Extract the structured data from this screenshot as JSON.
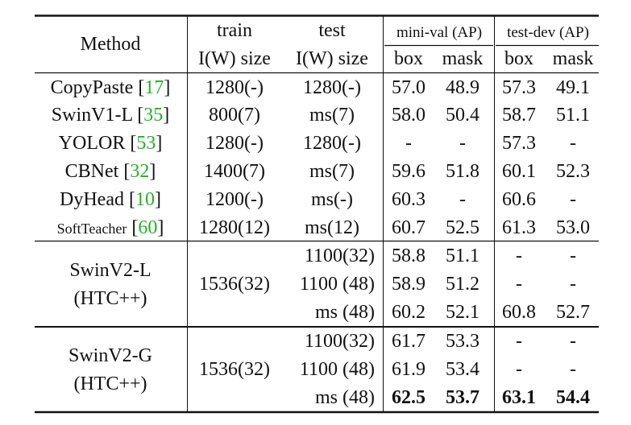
{
  "header": {
    "method": "Method",
    "train_line1": "train",
    "train_line2": "I(W) size",
    "test_line1": "test",
    "test_line2": "I(W) size",
    "minival_group": "mini-val (AP)",
    "testdev_group": "test-dev (AP)",
    "box": "box",
    "mask": "mask"
  },
  "rows": [
    {
      "method": "CopyPaste",
      "cite": "17",
      "train": "1280(-)",
      "test": "1280(-)",
      "mv_box": "57.0",
      "mv_mask": "48.9",
      "td_box": "57.3",
      "td_mask": "49.1"
    },
    {
      "method": "SwinV1-L",
      "cite": "35",
      "train": "800(7)",
      "test": "ms(7)",
      "mv_box": "58.0",
      "mv_mask": "50.4",
      "td_box": "58.7",
      "td_mask": "51.1"
    },
    {
      "method": "YOLOR",
      "cite": "53",
      "train": "1280(-)",
      "test": "1280(-)",
      "mv_box": "-",
      "mv_mask": "-",
      "td_box": "57.3",
      "td_mask": "-"
    },
    {
      "method": "CBNet",
      "cite": "32",
      "train": "1400(7)",
      "test": "ms(7)",
      "mv_box": "59.6",
      "mv_mask": "51.8",
      "td_box": "60.1",
      "td_mask": "52.3"
    },
    {
      "method": "DyHead",
      "cite": "10",
      "train": "1200(-)",
      "test": "ms(-)",
      "mv_box": "60.3",
      "mv_mask": "-",
      "td_box": "60.6",
      "td_mask": "-"
    },
    {
      "method": "SoftTeacher",
      "cite": "60",
      "train": "1280(12)",
      "test": "ms(12)",
      "mv_box": "60.7",
      "mv_mask": "52.5",
      "td_box": "61.3",
      "td_mask": "53.0"
    }
  ],
  "groups": [
    {
      "method_line1": "SwinV2-L",
      "method_line2": "(HTC++)",
      "train": "1536(32)",
      "rows": [
        {
          "test": "1100(32)",
          "mv_box": "58.8",
          "mv_mask": "51.1",
          "td_box": "-",
          "td_mask": "-"
        },
        {
          "test": "1100 (48)",
          "mv_box": "58.9",
          "mv_mask": "51.2",
          "td_box": "-",
          "td_mask": "-"
        },
        {
          "test": "ms (48)",
          "mv_box": "60.2",
          "mv_mask": "52.1",
          "td_box": "60.8",
          "td_mask": "52.7"
        }
      ]
    },
    {
      "method_line1": "SwinV2-G",
      "method_line2": "(HTC++)",
      "train": "1536(32)",
      "rows": [
        {
          "test": "1100(32)",
          "mv_box": "61.7",
          "mv_mask": "53.3",
          "td_box": "-",
          "td_mask": "-"
        },
        {
          "test": "1100 (48)",
          "mv_box": "61.9",
          "mv_mask": "53.4",
          "td_box": "-",
          "td_mask": "-"
        },
        {
          "test": "ms (48)",
          "mv_box": "62.5",
          "mv_mask": "53.7",
          "td_box": "63.1",
          "td_mask": "54.4"
        }
      ]
    }
  ],
  "colors": {
    "citation": "#22b322",
    "rule": "#111111",
    "text": "#111111"
  }
}
